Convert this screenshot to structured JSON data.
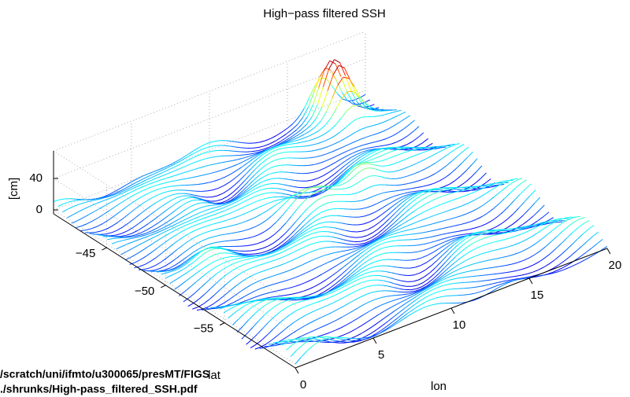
{
  "chart_data": {
    "type": "contour3",
    "title": "High−pass filtered SSH",
    "x_label": "lon",
    "y_label": "lat",
    "z_label": "[cm]",
    "xlim": [
      0,
      20
    ],
    "ylim": [
      -61,
      -40.5
    ],
    "zlim": [
      -5,
      75
    ],
    "xticks": [
      0,
      5,
      10,
      15,
      20
    ],
    "yticks": [
      {
        "value": -55,
        "label": "−55"
      },
      {
        "value": -50,
        "label": "−50"
      },
      {
        "value": -45,
        "label": "−45"
      }
    ],
    "zticks": [
      0,
      40
    ],
    "grid": true,
    "colormap": "jet"
  },
  "footer": {
    "lines": [
      "/scratch/uni/ifmto/u300065/presMT/FIGS",
      "./shrunks/High-pass_filtered_SSH.pdf"
    ]
  }
}
